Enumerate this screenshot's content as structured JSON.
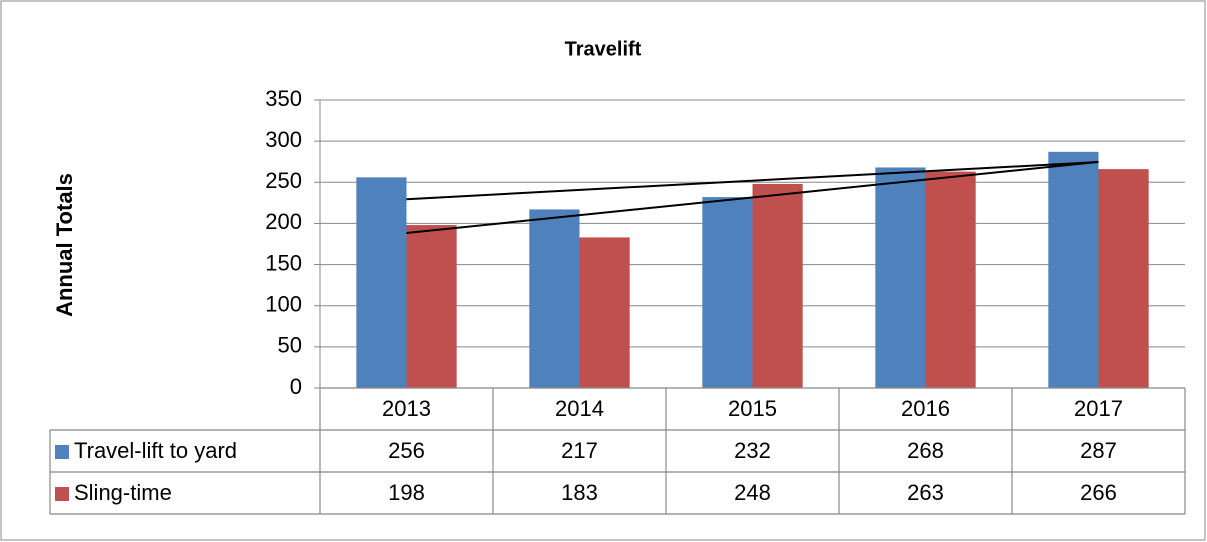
{
  "chart_data": {
    "type": "bar",
    "title": "Travelift",
    "y_label": "Annual Totals",
    "categories": [
      "2013",
      "2014",
      "2015",
      "2016",
      "2017"
    ],
    "series": [
      {
        "name": "Travel-lift to yard",
        "color": "#4f81bd",
        "values": [
          256,
          217,
          232,
          268,
          287
        ]
      },
      {
        "name": "Sling-time",
        "color": "#c0504d",
        "values": [
          198,
          183,
          248,
          263,
          266
        ]
      }
    ],
    "ylim": [
      0,
      350
    ],
    "yticks": [
      0,
      50,
      100,
      150,
      200,
      250,
      300,
      350
    ],
    "grid": true,
    "trendline": "linear",
    "data_table": true
  }
}
